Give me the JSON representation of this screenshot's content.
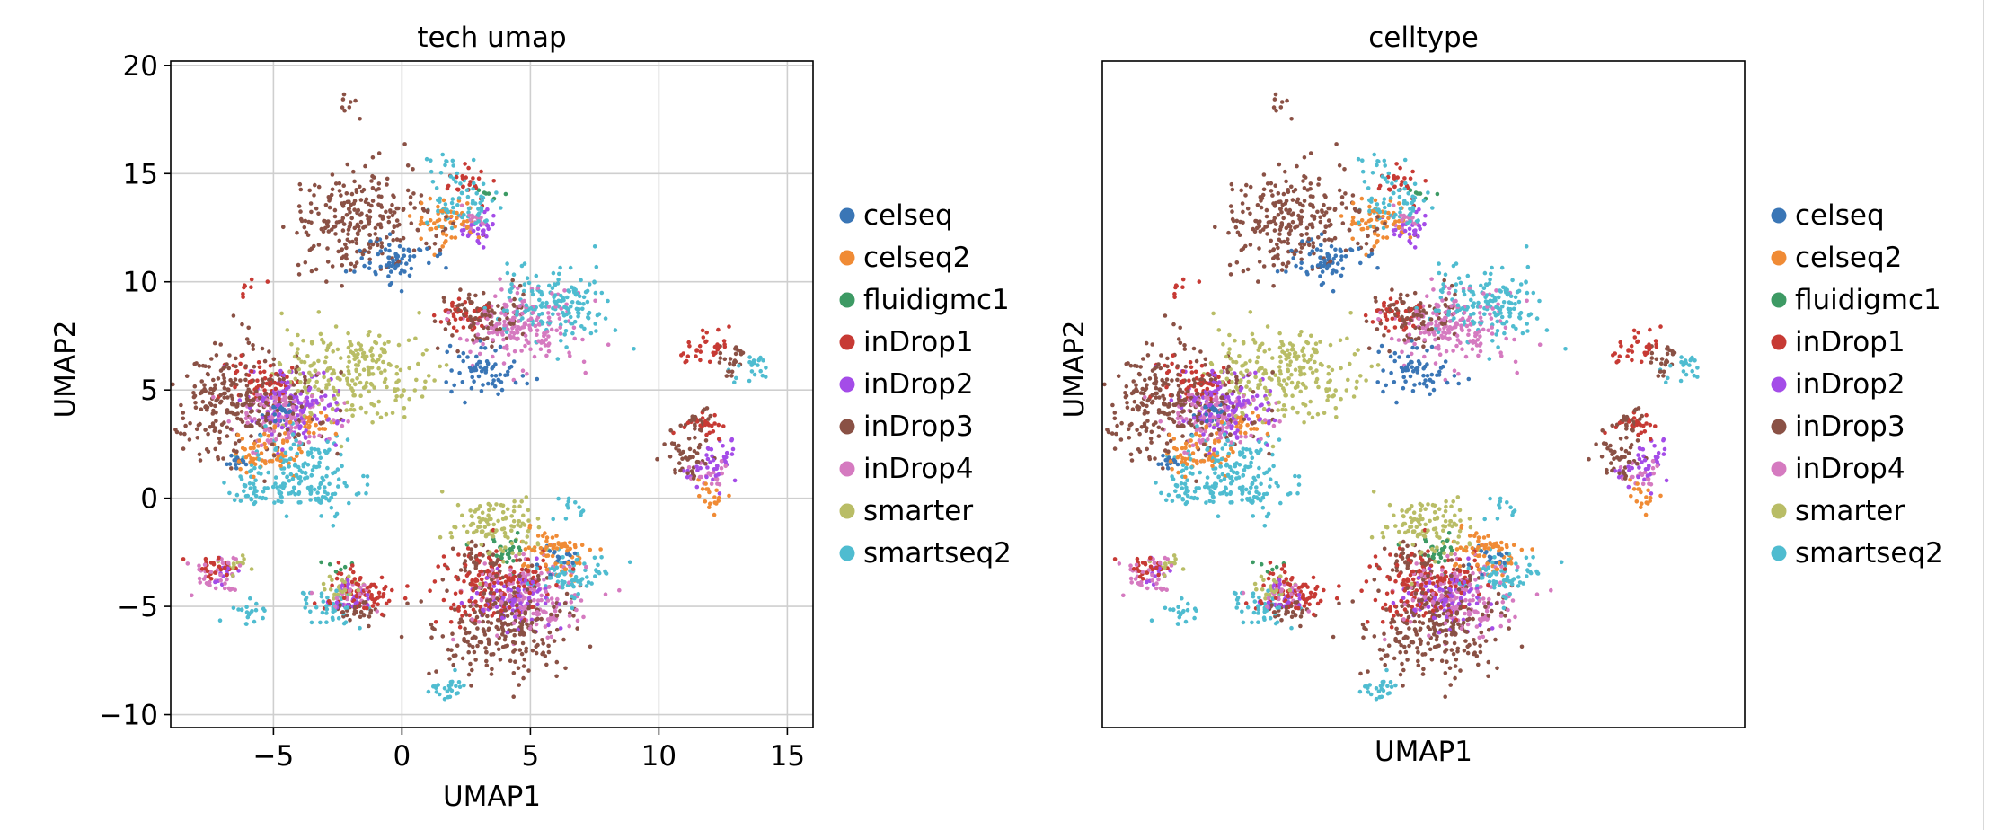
{
  "chart_data": [
    {
      "type": "scatter",
      "title": "tech umap",
      "xlabel": "UMAP1",
      "ylabel": "UMAP2",
      "xlim": [
        -9,
        16
      ],
      "ylim": [
        -10.6,
        20.2
      ],
      "xticks": [
        -5,
        0,
        5,
        10,
        15
      ],
      "yticks": [
        -10,
        -5,
        0,
        5,
        10,
        15,
        20
      ],
      "xtick_labels": [
        "−5",
        "0",
        "5",
        "10",
        "15"
      ],
      "ytick_labels": [
        "−10",
        "−5",
        "0",
        "5",
        "10",
        "15",
        "20"
      ],
      "grid": true,
      "legend_position": "right",
      "series": [
        {
          "name": "celseq",
          "color": "#3a76b6",
          "clusters": [
            {
              "x": -0.3,
              "y": 11.0,
              "n": 70
            },
            {
              "x": 3.3,
              "y": 6.0,
              "n": 70
            },
            {
              "x": -6.3,
              "y": 1.6,
              "n": 15
            },
            {
              "x": 6.0,
              "y": -2.6,
              "n": 20
            },
            {
              "x": -4.8,
              "y": 3.8,
              "n": 20
            }
          ]
        },
        {
          "name": "celseq2",
          "color": "#f08b35",
          "clusters": [
            {
              "x": 1.8,
              "y": 12.8,
              "n": 55
            },
            {
              "x": 5.8,
              "y": -2.6,
              "n": 70
            },
            {
              "x": -5.3,
              "y": 2.0,
              "n": 60
            },
            {
              "x": 11.9,
              "y": 0.2,
              "n": 18
            },
            {
              "x": -3.5,
              "y": 3.5,
              "n": 20
            }
          ]
        },
        {
          "name": "fluidigmc1",
          "color": "#3d9a64",
          "clusters": [
            {
              "x": 4.1,
              "y": -2.4,
              "n": 28
            },
            {
              "x": 3.5,
              "y": 14.0,
              "n": 6
            },
            {
              "x": -2.5,
              "y": -3.0,
              "n": 6
            }
          ]
        },
        {
          "name": "inDrop1",
          "color": "#c73a34",
          "clusters": [
            {
              "x": 2.5,
              "y": 14.6,
              "n": 25
            },
            {
              "x": 11.8,
              "y": 6.9,
              "n": 35
            },
            {
              "x": -5.5,
              "y": 5.5,
              "n": 60
            },
            {
              "x": 3.5,
              "y": -4.0,
              "n": 160
            },
            {
              "x": -1.5,
              "y": -4.4,
              "n": 70
            },
            {
              "x": 11.7,
              "y": 3.4,
              "n": 25
            },
            {
              "x": -6.0,
              "y": 9.8,
              "n": 8
            },
            {
              "x": 2.5,
              "y": 8.5,
              "n": 40
            },
            {
              "x": -7.3,
              "y": -3.3,
              "n": 25
            }
          ]
        },
        {
          "name": "inDrop2",
          "color": "#a44ce8",
          "clusters": [
            {
              "x": -4.2,
              "y": 4.3,
              "n": 130
            },
            {
              "x": 4.5,
              "y": -4.8,
              "n": 90
            },
            {
              "x": 12.0,
              "y": 1.3,
              "n": 30
            },
            {
              "x": 2.9,
              "y": 12.5,
              "n": 30
            },
            {
              "x": -1.9,
              "y": -4.6,
              "n": 25
            },
            {
              "x": 12.3,
              "y": 2.4,
              "n": 12
            },
            {
              "x": -7.0,
              "y": -3.3,
              "n": 15
            }
          ]
        },
        {
          "name": "inDrop3",
          "color": "#8a5145",
          "clusters": [
            {
              "x": -6.3,
              "y": 4.5,
              "n": 300
            },
            {
              "x": -1.6,
              "y": 12.8,
              "n": 250
            },
            {
              "x": 4.0,
              "y": -6.0,
              "n": 260
            },
            {
              "x": 3.0,
              "y": 8.5,
              "n": 90
            },
            {
              "x": 11.2,
              "y": 1.8,
              "n": 40
            },
            {
              "x": 13.0,
              "y": 6.5,
              "n": 25
            },
            {
              "x": -2.2,
              "y": 18.2,
              "n": 8
            },
            {
              "x": -1.8,
              "y": -5.2,
              "n": 30
            },
            {
              "x": 11.5,
              "y": 3.5,
              "n": 25
            },
            {
              "x": 3.0,
              "y": -3.0,
              "n": 40
            }
          ]
        },
        {
          "name": "inDrop4",
          "color": "#d57ac0",
          "clusters": [
            {
              "x": 4.6,
              "y": 8.0,
              "n": 180
            },
            {
              "x": 5.0,
              "y": -4.6,
              "n": 160
            },
            {
              "x": -4.5,
              "y": 3.8,
              "n": 120
            },
            {
              "x": -7.3,
              "y": -3.6,
              "n": 40
            },
            {
              "x": -2.2,
              "y": -4.5,
              "n": 30
            },
            {
              "x": 12.1,
              "y": 1.0,
              "n": 20
            },
            {
              "x": 2.8,
              "y": 13.0,
              "n": 20
            }
          ]
        },
        {
          "name": "smarter",
          "color": "#b9bd66",
          "clusters": [
            {
              "x": -2.0,
              "y": 5.8,
              "n": 230
            },
            {
              "x": 3.7,
              "y": -1.3,
              "n": 110
            },
            {
              "x": -2.3,
              "y": -4.2,
              "n": 25
            },
            {
              "x": -6.5,
              "y": -2.8,
              "n": 12
            }
          ]
        },
        {
          "name": "smartseq2",
          "color": "#4fbcd0",
          "clusters": [
            {
              "x": 5.8,
              "y": 9.0,
              "n": 160
            },
            {
              "x": -4.0,
              "y": 1.0,
              "n": 170
            },
            {
              "x": 2.2,
              "y": 13.5,
              "n": 70
            },
            {
              "x": 6.6,
              "y": -3.5,
              "n": 70
            },
            {
              "x": -2.8,
              "y": -5.0,
              "n": 45
            },
            {
              "x": 1.9,
              "y": -8.8,
              "n": 25
            },
            {
              "x": 13.6,
              "y": 6.0,
              "n": 22
            },
            {
              "x": -6.0,
              "y": -5.2,
              "n": 20
            },
            {
              "x": 1.7,
              "y": 15.4,
              "n": 12
            },
            {
              "x": 6.6,
              "y": -0.5,
              "n": 12
            },
            {
              "x": -6.0,
              "y": 0.2,
              "n": 20
            },
            {
              "x": -3.0,
              "y": 0.0,
              "n": 20
            }
          ]
        }
      ]
    },
    {
      "type": "scatter",
      "title": "celltype",
      "xlabel": "UMAP1",
      "ylabel": "UMAP2",
      "xlim": [
        -9,
        16
      ],
      "ylim": [
        -10.6,
        20.2
      ],
      "grid": false,
      "legend_position": "right",
      "same_points_as": "tech umap",
      "legend": [
        "celseq",
        "celseq2",
        "fluidigmc1",
        "inDrop1",
        "inDrop2",
        "inDrop3",
        "inDrop4",
        "smarter",
        "smartseq2"
      ]
    }
  ]
}
